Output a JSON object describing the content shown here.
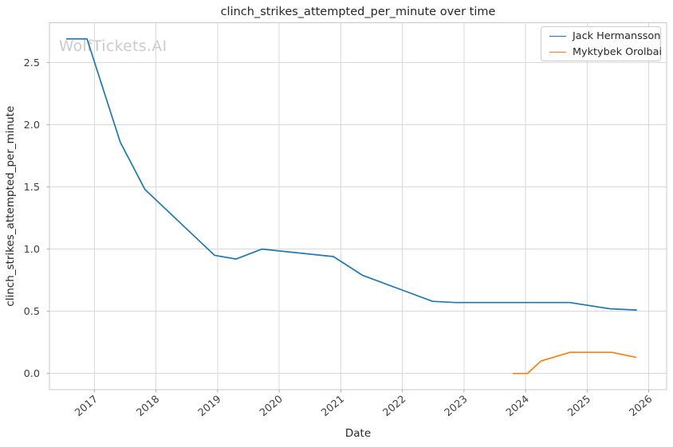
{
  "watermark": "WolfTickets.AI",
  "chart_data": {
    "type": "line",
    "title": "clinch_strikes_attempted_per_minute over time",
    "xlabel": "Date",
    "ylabel": "clinch_strikes_attempted_per_minute",
    "grid": true,
    "legend_position": "upper right",
    "xlim": [
      2016.27,
      2026.29
    ],
    "ylim": [
      -0.13,
      2.82
    ],
    "x_tick_values": [
      2017,
      2018,
      2019,
      2020,
      2021,
      2022,
      2023,
      2024,
      2025,
      2026
    ],
    "x_tick_labels": [
      "2017",
      "2018",
      "2019",
      "2020",
      "2021",
      "2022",
      "2023",
      "2024",
      "2025",
      "2026"
    ],
    "y_tick_values": [
      0.0,
      0.5,
      1.0,
      1.5,
      2.0,
      2.5
    ],
    "y_tick_labels": [
      "0.0",
      "0.5",
      "1.0",
      "1.5",
      "2.0",
      "2.5"
    ],
    "series": [
      {
        "name": "Jack Hermansson",
        "color": "#1f77b4",
        "x": [
          2016.55,
          2016.88,
          2017.42,
          2017.82,
          2018.95,
          2019.3,
          2019.72,
          2020.88,
          2021.35,
          2022.49,
          2022.86,
          2023.85,
          2024.72,
          2025.37,
          2025.8
        ],
        "y": [
          2.69,
          2.69,
          1.86,
          1.48,
          0.95,
          0.92,
          1.0,
          0.94,
          0.79,
          0.58,
          0.57,
          0.57,
          0.57,
          0.52,
          0.51
        ]
      },
      {
        "name": "Myktybek Orolbai",
        "color": "#ff7f0e",
        "x": [
          2023.8,
          2024.03,
          2024.25,
          2024.72,
          2025.4,
          2025.79
        ],
        "y": [
          0.0,
          0.0,
          0.1,
          0.17,
          0.17,
          0.13
        ]
      }
    ],
    "colors": {
      "grid": "#d9d9d9",
      "spine": "#c9c9c9",
      "tick": "#ababab",
      "text": "#262626",
      "tick_label": "#3d3d3d",
      "watermark": "#cbcbcb",
      "legend_border": "#cccccc",
      "background": "#ffffff"
    }
  }
}
